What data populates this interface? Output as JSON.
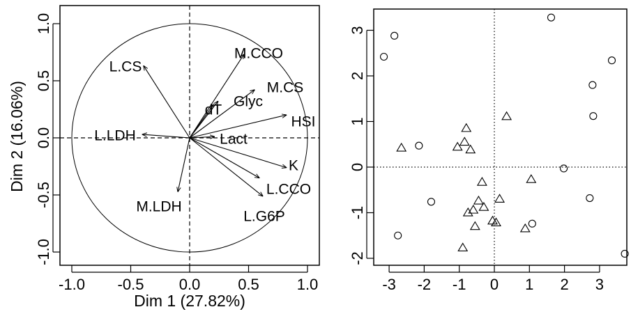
{
  "chart_data": [
    {
      "type": "pca-variable-factor-map",
      "xlabel": "Dim 1 (27.82%)",
      "ylabel": "Dim 2 (16.06%)",
      "xlim": [
        -1.05,
        1.05
      ],
      "ylim": [
        -1.15,
        1.15
      ],
      "x_ticks": [
        "-1.0",
        "-0.5",
        "0.0",
        "0.5",
        "1.0"
      ],
      "y_ticks": [
        "-1.0",
        "-0.5",
        "0.0",
        "0.5",
        "1.0"
      ],
      "unit_circle": true,
      "reference_lines": "dashed",
      "vectors": [
        {
          "label": "L.CS",
          "x": -0.39,
          "y": 0.63
        },
        {
          "label": "M.CCO",
          "x": 0.46,
          "y": 0.73
        },
        {
          "label": "M.CS",
          "x": 0.55,
          "y": 0.42
        },
        {
          "label": "dT",
          "x": 0.2,
          "y": 0.29
        },
        {
          "label": "Glyc",
          "x": 0.24,
          "y": 0.32
        },
        {
          "label": "HSI",
          "x": 0.82,
          "y": 0.2
        },
        {
          "label": "L.LDH",
          "x": -0.4,
          "y": 0.03
        },
        {
          "label": "Lact",
          "x": 0.21,
          "y": 0.01
        },
        {
          "label": "K",
          "x": 0.82,
          "y": -0.26
        },
        {
          "label": "L.CCO",
          "x": 0.59,
          "y": -0.35
        },
        {
          "label": "L.G6P",
          "x": 0.62,
          "y": -0.51
        },
        {
          "label": "M.LDH",
          "x": -0.1,
          "y": -0.47
        }
      ]
    },
    {
      "type": "scatter",
      "xlim": [
        -3.3,
        3.9
      ],
      "ylim": [
        -2.05,
        3.45
      ],
      "x_ticks": [
        "-3",
        "-2",
        "-1",
        "0",
        "1",
        "2",
        "3"
      ],
      "y_ticks": [
        "-2",
        "-1",
        "0",
        "1",
        "2",
        "3"
      ],
      "reference_lines": "dotted",
      "series": [
        {
          "marker": "circle",
          "points": [
            [
              -3.15,
              2.42
            ],
            [
              -2.85,
              2.88
            ],
            [
              -2.15,
              0.47
            ],
            [
              -2.75,
              -1.5
            ],
            [
              -1.8,
              -0.76
            ],
            [
              1.62,
              3.28
            ],
            [
              3.35,
              2.34
            ],
            [
              2.8,
              1.8
            ],
            [
              2.82,
              1.12
            ],
            [
              1.98,
              -0.03
            ],
            [
              2.72,
              -0.68
            ],
            [
              1.08,
              -1.24
            ],
            [
              3.72,
              -1.9
            ]
          ]
        },
        {
          "marker": "triangle",
          "points": [
            [
              -2.65,
              0.42
            ],
            [
              -0.8,
              0.85
            ],
            [
              -0.85,
              0.55
            ],
            [
              -1.05,
              0.44
            ],
            [
              -0.68,
              0.38
            ],
            [
              0.35,
              1.11
            ],
            [
              -0.35,
              -0.33
            ],
            [
              1.05,
              -0.27
            ],
            [
              -0.45,
              -0.74
            ],
            [
              -0.6,
              -0.94
            ],
            [
              -0.3,
              -0.88
            ],
            [
              0.15,
              -0.7
            ],
            [
              -0.75,
              -1.0
            ],
            [
              -0.05,
              -1.18
            ],
            [
              0.05,
              -1.22
            ],
            [
              -0.55,
              -1.3
            ],
            [
              0.88,
              -1.35
            ],
            [
              -0.9,
              -1.77
            ]
          ]
        }
      ]
    }
  ]
}
